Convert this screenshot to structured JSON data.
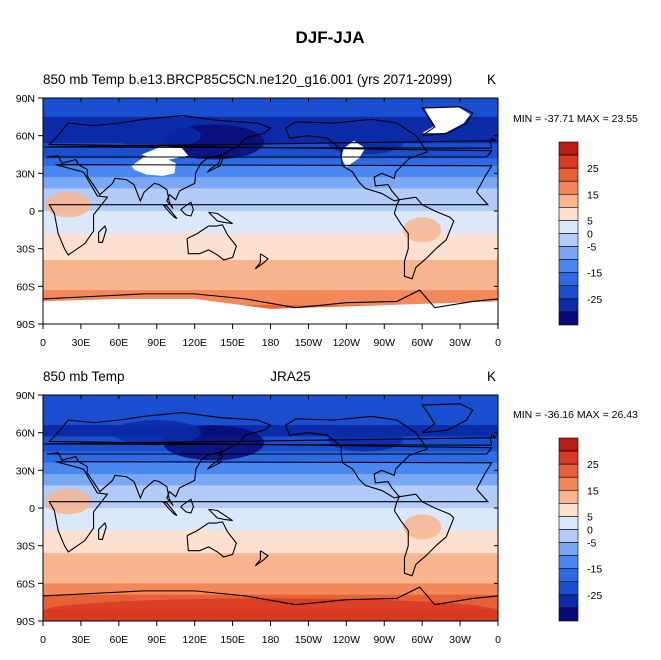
{
  "figure_title": "DJF-JJA",
  "colors": {
    "continent_outline": "#000000",
    "missing_data": "#ffffff"
  },
  "chart_data": [
    {
      "type": "heatmap",
      "title_left": "850 mb Temp",
      "title_center": "b.e13.BRCP85C5CN.ne120_g16.001 (yrs 2071-2099)",
      "title_right": "K",
      "stats": "MIN = -37.71 MAX =  23.55",
      "xlim": [
        0,
        360
      ],
      "ylim": [
        -90,
        90
      ],
      "x_ticks": [
        "0",
        "30E",
        "60E",
        "90E",
        "120E",
        "150E",
        "180",
        "150W",
        "120W",
        "90W",
        "60W",
        "30W",
        "0"
      ],
      "y_ticks": [
        "90N",
        "60N",
        "30N",
        "0",
        "30S",
        "60S",
        "90S"
      ],
      "lat_profile": [
        {
          "lat": 90,
          "value": -22
        },
        {
          "lat": 75,
          "value": -25
        },
        {
          "lat": 60,
          "value": -27
        },
        {
          "lat": 45,
          "value": -22
        },
        {
          "lat": 30,
          "value": -12
        },
        {
          "lat": 15,
          "value": -4
        },
        {
          "lat": 0,
          "value": 0
        },
        {
          "lat": -15,
          "value": 4
        },
        {
          "lat": -30,
          "value": 8
        },
        {
          "lat": -45,
          "value": 11
        },
        {
          "lat": -60,
          "value": 13
        },
        {
          "lat": -75,
          "value": 20
        },
        {
          "lat": -90,
          "value": 20
        }
      ],
      "missing_regions": [
        "Tibetan Plateau",
        "Himalaya",
        "Greenland",
        "Rocky Mountains",
        "Antarctica"
      ],
      "grid": false
    },
    {
      "type": "heatmap",
      "title_left": "850 mb Temp",
      "title_center": "JRA25",
      "title_right": "K",
      "stats": "MIN = -36.16 MAX =  26.43",
      "xlim": [
        0,
        360
      ],
      "ylim": [
        -90,
        90
      ],
      "x_ticks": [
        "0",
        "30E",
        "60E",
        "90E",
        "120E",
        "150E",
        "180",
        "150W",
        "120W",
        "90W",
        "60W",
        "30W",
        "0"
      ],
      "y_ticks": [
        "90N",
        "60N",
        "30N",
        "0",
        "30S",
        "60S",
        "90S"
      ],
      "lat_profile": [
        {
          "lat": 90,
          "value": -20
        },
        {
          "lat": 75,
          "value": -24
        },
        {
          "lat": 60,
          "value": -26
        },
        {
          "lat": 45,
          "value": -21
        },
        {
          "lat": 30,
          "value": -11
        },
        {
          "lat": 15,
          "value": -3
        },
        {
          "lat": 0,
          "value": 0
        },
        {
          "lat": -15,
          "value": 4
        },
        {
          "lat": -30,
          "value": 8
        },
        {
          "lat": -45,
          "value": 12
        },
        {
          "lat": -60,
          "value": 15
        },
        {
          "lat": -75,
          "value": 24
        },
        {
          "lat": -90,
          "value": 26
        }
      ],
      "missing_regions": [],
      "grid": false
    }
  ],
  "colorbar": {
    "levels": [
      -30,
      -25,
      -20,
      -15,
      -10,
      -5,
      0,
      5,
      10,
      15,
      20,
      25,
      30
    ],
    "tick_labels": [
      "25",
      "15",
      "5",
      "0",
      "-5",
      "-15",
      "-25"
    ],
    "colors": [
      "#0a0a78",
      "#0b2ba8",
      "#1a4fd0",
      "#2e6ae4",
      "#4a87f0",
      "#7ba8f5",
      "#b2cbf8",
      "#dbe8fc",
      "#fde0d0",
      "#f9b58f",
      "#f3895a",
      "#e86038",
      "#d83a22",
      "#b81c14"
    ]
  }
}
